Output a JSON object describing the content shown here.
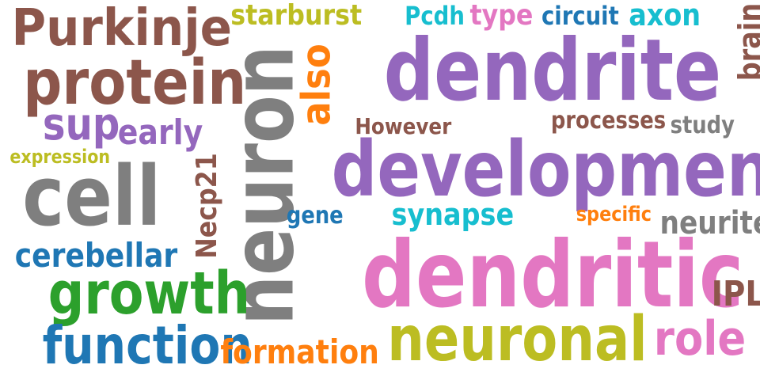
{
  "colors": {
    "brown": "#8c564b",
    "purple": "#9467bd",
    "gray": "#7f7f7f",
    "olive": "#bcbd22",
    "cyan": "#17becf",
    "blue": "#1f77b4",
    "orange": "#ff7f0e",
    "green": "#2ca02c",
    "pink": "#e377c2"
  },
  "words": [
    {
      "text": "Purkinje",
      "color": "#8c564b"
    },
    {
      "text": "starburst",
      "color": "#bcbd22"
    },
    {
      "text": "Pcdh",
      "color": "#17becf"
    },
    {
      "text": "type",
      "color": "#e377c2"
    },
    {
      "text": "circuit",
      "color": "#1f77b4"
    },
    {
      "text": "axon",
      "color": "#17becf"
    },
    {
      "text": "brain",
      "color": "#8c564b"
    },
    {
      "text": "protein",
      "color": "#8c564b"
    },
    {
      "text": "also",
      "color": "#ff7f0e"
    },
    {
      "text": "dendrite",
      "color": "#9467bd"
    },
    {
      "text": "neuron",
      "color": "#7f7f7f"
    },
    {
      "text": "sup",
      "color": "#9467bd"
    },
    {
      "text": "early",
      "color": "#9467bd"
    },
    {
      "text": "However",
      "color": "#8c564b"
    },
    {
      "text": "processes",
      "color": "#8c564b"
    },
    {
      "text": "study",
      "color": "#7f7f7f"
    },
    {
      "text": "expression",
      "color": "#bcbd22"
    },
    {
      "text": "development",
      "color": "#9467bd"
    },
    {
      "text": "cell",
      "color": "#7f7f7f"
    },
    {
      "text": "Necp21",
      "color": "#8c564b"
    },
    {
      "text": "gene",
      "color": "#1f77b4"
    },
    {
      "text": "synapse",
      "color": "#17becf"
    },
    {
      "text": "specific",
      "color": "#ff7f0e"
    },
    {
      "text": "neurite",
      "color": "#7f7f7f"
    },
    {
      "text": "cerebellar",
      "color": "#1f77b4"
    },
    {
      "text": "dendritic",
      "color": "#e377c2"
    },
    {
      "text": "growth",
      "color": "#2ca02c"
    },
    {
      "text": "IPL",
      "color": "#8c564b"
    },
    {
      "text": "role",
      "color": "#e377c2"
    },
    {
      "text": "neuronal",
      "color": "#bcbd22"
    },
    {
      "text": "function",
      "color": "#1f77b4"
    },
    {
      "text": "formation",
      "color": "#ff7f0e"
    }
  ]
}
